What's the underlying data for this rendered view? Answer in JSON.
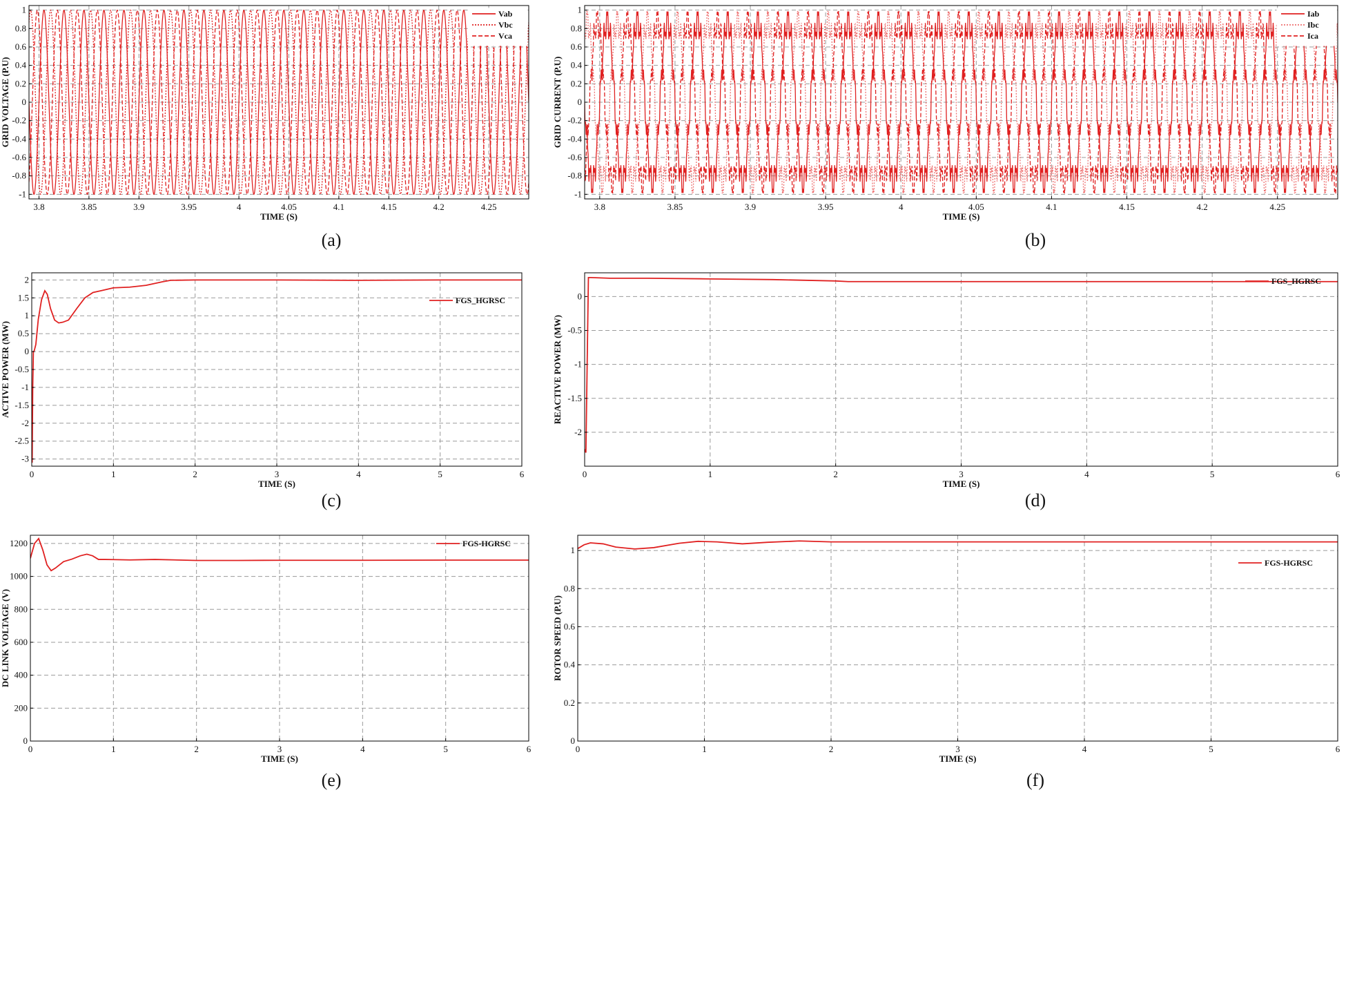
{
  "captions": [
    "(a)",
    "(b)",
    "(c)",
    "(d)",
    "(e)",
    "(f)"
  ],
  "colors": {
    "series": "#e02020",
    "series_light": "#ee7070",
    "grid": "#9a9a9a",
    "axis": "#000000"
  },
  "chart_data": [
    {
      "id": "a",
      "type": "line",
      "xlabel": "TIME (S)",
      "ylabel": "GRID VOLTAGE (P.U)",
      "xlim": [
        3.79,
        4.29
      ],
      "ylim": [
        -1.05,
        1.05
      ],
      "xticks": [
        3.8,
        3.85,
        3.9,
        3.95,
        4,
        4.05,
        4.1,
        4.15,
        4.2,
        4.25
      ],
      "xtick_labels": [
        "3.8",
        "3.85",
        "3.9",
        "3.95",
        "4",
        "4.05",
        "4.1",
        "4.15",
        "4.2",
        "4.25"
      ],
      "yticks": [
        -1,
        -0.8,
        -0.6,
        -0.4,
        -0.2,
        0,
        0.2,
        0.4,
        0.6,
        0.8,
        1
      ],
      "ytick_labels": [
        "-1",
        "-0.8",
        "-0.6",
        "-0.4",
        "-0.2",
        "0",
        "0.2",
        "0.4",
        "0.6",
        "0.8",
        "1"
      ],
      "grid": true,
      "legend_position": "top-right",
      "series": [
        {
          "name": "Vab",
          "style": "solid",
          "waveform": "sine",
          "amplitude": 1,
          "frequency_hz": 50,
          "phase_deg": 0
        },
        {
          "name": "Vbc",
          "style": "dotted",
          "waveform": "sine",
          "amplitude": 1,
          "frequency_hz": 50,
          "phase_deg": -120
        },
        {
          "name": "Vca",
          "style": "dashed",
          "waveform": "sine",
          "amplitude": 1,
          "frequency_hz": 50,
          "phase_deg": 120
        }
      ]
    },
    {
      "id": "b",
      "type": "line",
      "xlabel": "TIME (S)",
      "ylabel": "GRID CURRENT (P.U)",
      "xlim": [
        3.79,
        4.29
      ],
      "ylim": [
        -1.05,
        1.05
      ],
      "xticks": [
        3.8,
        3.85,
        3.9,
        3.95,
        4,
        4.05,
        4.1,
        4.15,
        4.2,
        4.25
      ],
      "xtick_labels": [
        "3.8",
        "3.85",
        "3.9",
        "3.95",
        "4",
        "4.05",
        "4.1",
        "4.15",
        "4.2",
        "4.25"
      ],
      "yticks": [
        -1,
        -0.8,
        -0.6,
        -0.4,
        -0.2,
        0,
        0.2,
        0.4,
        0.6,
        0.8,
        1
      ],
      "ytick_labels": [
        "-1",
        "-0.8",
        "-0.6",
        "-0.4",
        "-0.2",
        "0",
        "0.2",
        "0.4",
        "0.6",
        "0.8",
        "1"
      ],
      "grid": true,
      "legend_position": "top-right",
      "series": [
        {
          "name": "Iab",
          "style": "solid",
          "waveform": "distorted-sine",
          "amplitude": 1,
          "frequency_hz": 50,
          "phase_deg": 0
        },
        {
          "name": "Ibc",
          "style": "dotted",
          "waveform": "distorted-sine",
          "amplitude": 1,
          "frequency_hz": 50,
          "phase_deg": -120
        },
        {
          "name": "Ica",
          "style": "dashed",
          "waveform": "distorted-sine",
          "amplitude": 1,
          "frequency_hz": 50,
          "phase_deg": 120
        }
      ]
    },
    {
      "id": "c",
      "type": "line",
      "xlabel": "TIME (S)",
      "ylabel": "ACTIVE POWER (MW)",
      "xlim": [
        0,
        6
      ],
      "ylim": [
        -3.2,
        2.2
      ],
      "xticks": [
        0,
        1,
        2,
        3,
        4,
        5,
        6
      ],
      "xtick_labels": [
        "0",
        "1",
        "2",
        "3",
        "4",
        "5",
        "6"
      ],
      "yticks": [
        -3,
        -2.5,
        -2,
        -1.5,
        -1,
        -0.5,
        0,
        0.5,
        1,
        1.5,
        2
      ],
      "ytick_labels": [
        "-3",
        "-2.5",
        "-2",
        "-1.5",
        "-1",
        "-0.5",
        "0",
        "0.5",
        "1",
        "1.5",
        "2"
      ],
      "grid": true,
      "legend_position": "top-right",
      "series": [
        {
          "name": "FGS_HGRSC",
          "style": "solid",
          "x": [
            0,
            0.005,
            0.012,
            0.02,
            0.03,
            0.05,
            0.08,
            0.12,
            0.16,
            0.19,
            0.23,
            0.28,
            0.33,
            0.38,
            0.45,
            0.55,
            0.65,
            0.75,
            0.85,
            1.0,
            1.2,
            1.4,
            1.6,
            1.7,
            2.0,
            3.0,
            4.0,
            5.0,
            6.0
          ],
          "y": [
            -2.9,
            -3.1,
            -1.0,
            0.0,
            0.02,
            0.2,
            0.9,
            1.45,
            1.7,
            1.6,
            1.2,
            0.88,
            0.8,
            0.82,
            0.88,
            1.2,
            1.5,
            1.65,
            1.7,
            1.78,
            1.8,
            1.85,
            1.95,
            1.99,
            2.0,
            2.0,
            1.99,
            2.0,
            2.0
          ]
        }
      ]
    },
    {
      "id": "d",
      "type": "line",
      "xlabel": "TIME (S)",
      "ylabel": "REACTIVE POWER (MW)",
      "xlim": [
        0,
        6
      ],
      "ylim": [
        -2.5,
        0.35
      ],
      "xticks": [
        0,
        1,
        2,
        3,
        4,
        5,
        6
      ],
      "xtick_labels": [
        "0",
        "1",
        "2",
        "3",
        "4",
        "5",
        "6"
      ],
      "yticks": [
        -2,
        -1.5,
        -1,
        -0.5,
        0
      ],
      "ytick_labels": [
        "-2",
        "-1.5",
        "-1",
        "-0.5",
        "0"
      ],
      "grid": true,
      "legend_position": "top-right",
      "series": [
        {
          "name": "FGS_HGRSC",
          "style": "solid",
          "x": [
            0,
            0.01,
            0.02,
            0.03,
            0.05,
            0.2,
            0.5,
            1.0,
            1.5,
            2.0,
            2.1,
            3.0,
            4.0,
            5.0,
            6.0
          ],
          "y": [
            -2.25,
            -2.3,
            -1.0,
            0.28,
            0.28,
            0.27,
            0.27,
            0.26,
            0.25,
            0.23,
            0.22,
            0.22,
            0.22,
            0.22,
            0.22
          ]
        }
      ]
    },
    {
      "id": "e",
      "type": "line",
      "xlabel": "TIME (S)",
      "ylabel": "DC LINK VOLTAGE (V)",
      "xlim": [
        0,
        6
      ],
      "ylim": [
        0,
        1250
      ],
      "xticks": [
        0,
        1,
        2,
        3,
        4,
        5,
        6
      ],
      "xtick_labels": [
        "0",
        "1",
        "2",
        "3",
        "4",
        "5",
        "6"
      ],
      "yticks": [
        0,
        200,
        400,
        600,
        800,
        1000,
        1200
      ],
      "ytick_labels": [
        "0",
        "200",
        "400",
        "600",
        "800",
        "1000",
        "1200"
      ],
      "grid": true,
      "legend_position": "top-right",
      "series": [
        {
          "name": "FGS-HGRSC",
          "style": "solid",
          "x": [
            0,
            0.05,
            0.1,
            0.15,
            0.2,
            0.25,
            0.3,
            0.4,
            0.5,
            0.6,
            0.68,
            0.75,
            0.82,
            0.9,
            1.0,
            1.2,
            1.5,
            2.0,
            2.5,
            3.0,
            4.0,
            5.0,
            6.0
          ],
          "y": [
            1110,
            1200,
            1230,
            1160,
            1070,
            1035,
            1050,
            1090,
            1105,
            1125,
            1135,
            1125,
            1103,
            1103,
            1102,
            1100,
            1103,
            1097,
            1097,
            1098,
            1098,
            1099,
            1099
          ]
        }
      ]
    },
    {
      "id": "f",
      "type": "line",
      "xlabel": "TIME (S)",
      "ylabel": "ROTOR SPEED (P.U)",
      "xlim": [
        0,
        6
      ],
      "ylim": [
        0,
        1.08
      ],
      "xticks": [
        0,
        1,
        2,
        3,
        4,
        5,
        6
      ],
      "xtick_labels": [
        "0",
        "1",
        "2",
        "3",
        "4",
        "5",
        "6"
      ],
      "yticks": [
        0,
        0.2,
        0.4,
        0.6,
        0.8,
        1
      ],
      "ytick_labels": [
        "0",
        "0.2",
        "0.4",
        "0.6",
        "0.8",
        "1"
      ],
      "grid": true,
      "legend_position": "top-right",
      "series": [
        {
          "name": "FGS-HGRSC",
          "style": "solid",
          "x": [
            0,
            0.05,
            0.1,
            0.2,
            0.3,
            0.45,
            0.6,
            0.8,
            0.95,
            1.1,
            1.3,
            1.5,
            1.75,
            2.0,
            2.5,
            3.0,
            4.0,
            5.0,
            6.0
          ],
          "y": [
            1.01,
            1.03,
            1.04,
            1.035,
            1.018,
            1.008,
            1.015,
            1.038,
            1.048,
            1.045,
            1.035,
            1.043,
            1.05,
            1.045,
            1.045,
            1.045,
            1.045,
            1.045,
            1.045
          ]
        }
      ]
    }
  ]
}
